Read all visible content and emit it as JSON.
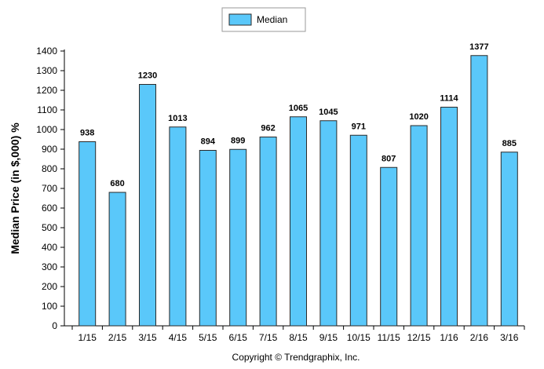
{
  "colors": {
    "bar_fill": "#5ac8fa",
    "bar_stroke": "#2a2a2a",
    "axis": "#000000"
  },
  "legend": {
    "label": "Median"
  },
  "footer": {
    "copyright": "Copyright © Trendgraphix, Inc."
  },
  "chart_data": {
    "type": "bar",
    "title": "",
    "xlabel": "",
    "ylabel": "Median Price (in $,000) %",
    "ylim": [
      0,
      1400
    ],
    "ytick_step": 100,
    "legend_position": "top-center",
    "grid": false,
    "categories": [
      "1/15",
      "2/15",
      "3/15",
      "4/15",
      "5/15",
      "6/15",
      "7/15",
      "8/15",
      "9/15",
      "10/15",
      "11/15",
      "12/15",
      "1/16",
      "2/16",
      "3/16"
    ],
    "series": [
      {
        "name": "Median",
        "values": [
          938,
          680,
          1230,
          1013,
          894,
          899,
          962,
          1065,
          1045,
          971,
          807,
          1020,
          1114,
          1377,
          885
        ]
      }
    ]
  }
}
